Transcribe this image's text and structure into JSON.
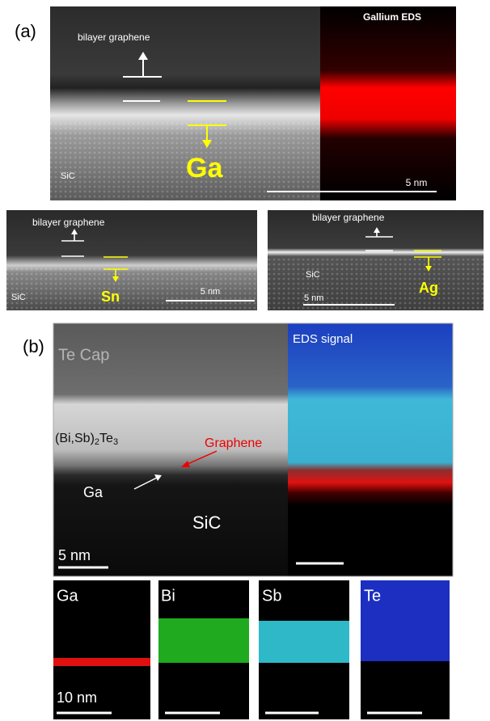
{
  "panel_a": {
    "label": "(a)",
    "main": {
      "graphene_label": "bilayer graphene",
      "substrate_label": "SiC",
      "element_label": "Ga",
      "eds_title": "Gallium EDS",
      "scale_label": "5 nm"
    },
    "sn": {
      "graphene_label": "bilayer graphene",
      "substrate_label": "SiC",
      "element_label": "Sn",
      "scale_label": "5 nm"
    },
    "ag": {
      "graphene_label": "bilayer graphene",
      "substrate_label": "SiC",
      "element_label": "Ag",
      "scale_label": "5 nm"
    }
  },
  "panel_b": {
    "label": "(b)",
    "main": {
      "cap_label": "Te Cap",
      "film_label": [
        "(Bi,Sb)",
        "2",
        "Te",
        "3"
      ],
      "graphene_label": "Graphene",
      "ga_label": "Ga",
      "substrate_label": "SiC",
      "scale_label": "5 nm",
      "eds_title": "EDS signal"
    },
    "maps": [
      {
        "label": "Ga"
      },
      {
        "label": "Bi"
      },
      {
        "label": "Sb"
      },
      {
        "label": "Te"
      }
    ],
    "map_scale_label": "10 nm"
  }
}
